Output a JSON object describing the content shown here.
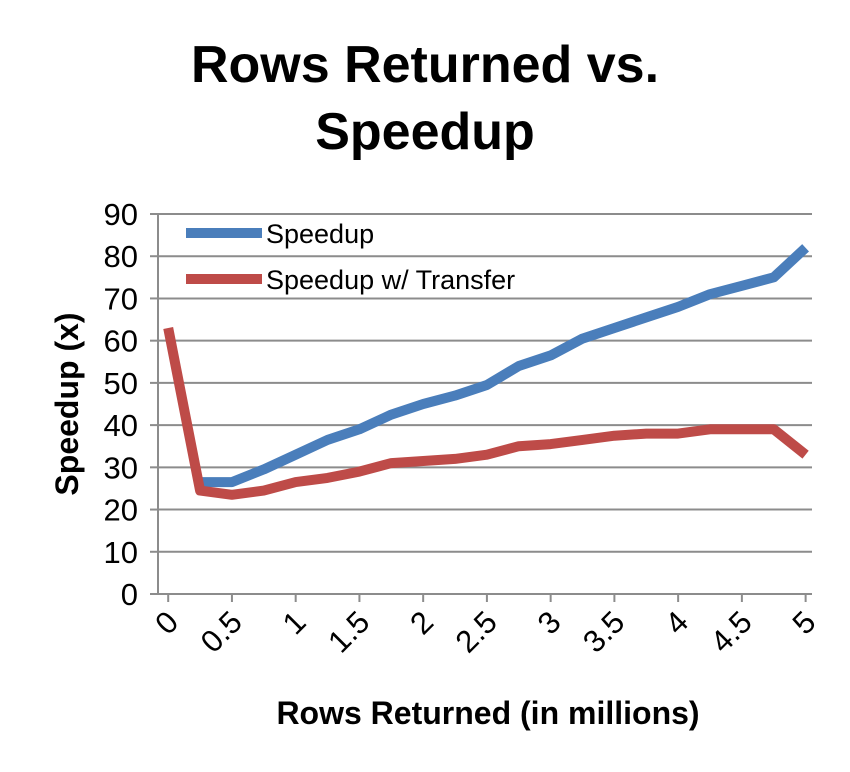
{
  "chart_data": {
    "type": "line",
    "title_lines": [
      "Rows Returned vs.",
      "Speedup"
    ],
    "xlabel": "Rows Returned (in millions)",
    "ylabel": "Speedup (x)",
    "ylim": [
      0,
      90
    ],
    "y_ticks": [
      0,
      10,
      20,
      30,
      40,
      50,
      60,
      70,
      80,
      90
    ],
    "x_tick_labels": [
      "0",
      "0.5",
      "1",
      "1.5",
      "2",
      "2.5",
      "3",
      "3.5",
      "4",
      "4.5",
      "5"
    ],
    "grid": "horizontal",
    "legend_position": "top-left",
    "series": [
      {
        "name": "Speedup",
        "color": "#4a7ebb",
        "points": [
          [
            0.25,
            26.5
          ],
          [
            0.5,
            26.5
          ],
          [
            0.75,
            29.5
          ],
          [
            1.0,
            33.0
          ],
          [
            1.25,
            36.5
          ],
          [
            1.5,
            39.0
          ],
          [
            1.75,
            42.5
          ],
          [
            2.0,
            45.0
          ],
          [
            2.25,
            47.0
          ],
          [
            2.5,
            49.5
          ],
          [
            2.75,
            54.0
          ],
          [
            3.0,
            56.5
          ],
          [
            3.25,
            60.5
          ],
          [
            3.5,
            63.0
          ],
          [
            3.75,
            65.5
          ],
          [
            4.0,
            68.0
          ],
          [
            4.25,
            71.0
          ],
          [
            4.5,
            73.0
          ],
          [
            4.75,
            75.0
          ],
          [
            5.0,
            82.0
          ]
        ]
      },
      {
        "name": "Speedup w/ Transfer",
        "color": "#be4b48",
        "points": [
          [
            0.0,
            63.0
          ],
          [
            0.25,
            24.5
          ],
          [
            0.5,
            23.5
          ],
          [
            0.75,
            24.5
          ],
          [
            1.0,
            26.5
          ],
          [
            1.25,
            27.5
          ],
          [
            1.5,
            29.0
          ],
          [
            1.75,
            31.0
          ],
          [
            2.0,
            31.5
          ],
          [
            2.25,
            32.0
          ],
          [
            2.5,
            33.0
          ],
          [
            2.75,
            35.0
          ],
          [
            3.0,
            35.5
          ],
          [
            3.25,
            36.5
          ],
          [
            3.5,
            37.5
          ],
          [
            3.75,
            38.0
          ],
          [
            4.0,
            38.0
          ],
          [
            4.25,
            39.0
          ],
          [
            4.5,
            39.0
          ],
          [
            4.75,
            39.0
          ],
          [
            5.0,
            33.0
          ]
        ]
      }
    ]
  }
}
